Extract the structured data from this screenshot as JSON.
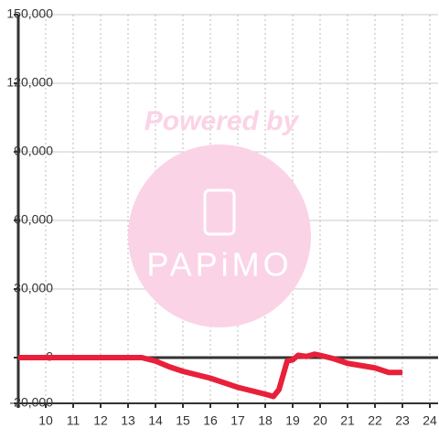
{
  "chart_data": {
    "type": "line",
    "watermark": {
      "text": "Powered by",
      "logo": "PAPiMO"
    },
    "x": [
      9,
      13.5,
      14,
      14.5,
      15,
      15.5,
      16,
      16.5,
      17,
      17.5,
      18,
      18.3,
      18.5,
      18.8,
      19,
      19.2,
      19.5,
      19.8,
      20,
      20.5,
      21,
      21.5,
      22,
      22.5,
      23
    ],
    "series": [
      {
        "color": "#e8203a",
        "values": [
          0,
          0,
          -1500,
          -4000,
          -6000,
          -7500,
          -9000,
          -11000,
          -13000,
          -14500,
          -16000,
          -17000,
          -14000,
          -1500,
          -1000,
          1000,
          500,
          1500,
          1000,
          -500,
          -2500,
          -3500,
          -4500,
          -6500,
          -6500
        ]
      }
    ],
    "xlim": [
      9,
      24.3
    ],
    "xticks": [
      10,
      11,
      12,
      13,
      14,
      15,
      16,
      17,
      18,
      19,
      20,
      21,
      22,
      23,
      24
    ],
    "ylim": [
      -20000,
      150000
    ],
    "yticks": [
      {
        "value": -20000,
        "label": "-20,000"
      },
      0,
      {
        "value": 30000,
        "label": "30,000"
      },
      {
        "value": 60000,
        "label": "60,000"
      },
      {
        "value": 90000,
        "label": "90,000"
      },
      {
        "value": 120000,
        "label": "120,000"
      },
      {
        "value": 150000,
        "label": "150,000"
      }
    ],
    "grid": true
  }
}
